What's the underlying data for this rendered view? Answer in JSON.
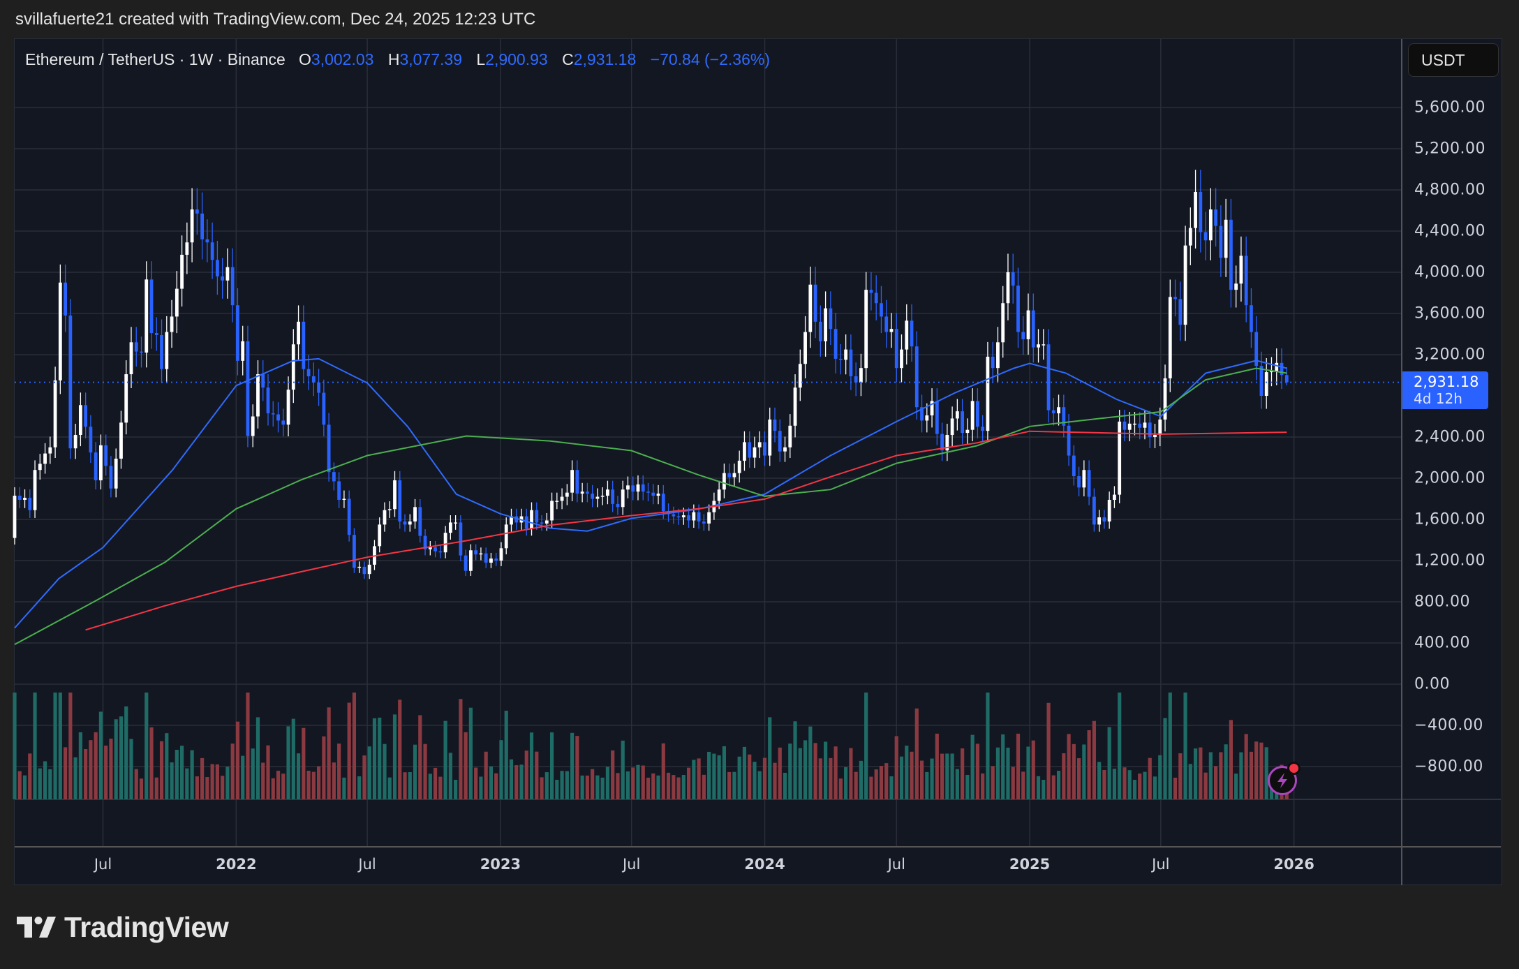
{
  "credit": "svillafuerte21 created with TradingView.com, Dec 24, 2025 12:23 UTC",
  "legend": {
    "symbol": "Ethereum / TetherUS · 1W · Binance",
    "o_label": "O",
    "o": "3,002.03",
    "h_label": "H",
    "h": "3,077.39",
    "l_label": "L",
    "l": "2,900.93",
    "c_label": "C",
    "c": "2,931.18",
    "change": "−70.84 (−2.36%)"
  },
  "currency_button": "USDT",
  "price_tag": {
    "price": "2,931.18",
    "countdown": "4d 12h"
  },
  "logo_text": "TradingView",
  "colors": {
    "up": "#ffffff",
    "down": "#2962ff",
    "vol_up": "#1f6b66",
    "vol_down": "#8a3a40",
    "ma_blue": "#2f6bff",
    "ma_green": "#4caf50",
    "ma_red": "#f23645",
    "grid": "#2a2e39",
    "accent": "#2962ff"
  },
  "chart_data": {
    "type": "candlestick",
    "interval": "1W",
    "start": "2021-03-01",
    "first_open": 1420,
    "weekly_closes": [
      1830,
      1790,
      1810,
      1690,
      2080,
      2140,
      2240,
      2300,
      2950,
      3900,
      3580,
      2290,
      2420,
      2710,
      2500,
      2250,
      1980,
      2320,
      2120,
      1900,
      2190,
      2540,
      3010,
      3320,
      3230,
      3220,
      3930,
      3410,
      3390,
      3060,
      3420,
      3570,
      3840,
      4170,
      4290,
      4610,
      4570,
      4320,
      4290,
      4120,
      3960,
      3920,
      4050,
      3680,
      3140,
      3330,
      2410,
      2600,
      3010,
      2880,
      2630,
      2620,
      2560,
      2520,
      2860,
      3300,
      3520,
      3060,
      2990,
      2930,
      2830,
      2520,
      2060,
      1970,
      1790,
      1800,
      1450,
      1130,
      1140,
      1070,
      1160,
      1340,
      1550,
      1690,
      1700,
      1980,
      1580,
      1550,
      1580,
      1720,
      1440,
      1310,
      1330,
      1290,
      1280,
      1470,
      1570,
      1570,
      1250,
      1100,
      1300,
      1260,
      1270,
      1180,
      1220,
      1200,
      1320,
      1550,
      1630,
      1570,
      1630,
      1510,
      1690,
      1570,
      1560,
      1590,
      1780,
      1780,
      1820,
      1860,
      2080,
      1850,
      1870,
      1850,
      1800,
      1820,
      1830,
      1890,
      1750,
      1720,
      1890,
      1930,
      1870,
      1940,
      1870,
      1860,
      1830,
      1850,
      1680,
      1650,
      1630,
      1620,
      1640,
      1590,
      1670,
      1580,
      1560,
      1670,
      1780,
      1890,
      2050,
      2010,
      2050,
      2170,
      2350,
      2200,
      2300,
      2350,
      2220,
      2570,
      2460,
      2260,
      2300,
      2510,
      2880,
      3110,
      3420,
      3880,
      3520,
      3330,
      3650,
      3450,
      3160,
      3150,
      3250,
      2990,
      2930,
      3070,
      3830,
      3800,
      3700,
      3570,
      3420,
      3450,
      3070,
      3250,
      3530,
      3280,
      2690,
      2560,
      2610,
      2750,
      2430,
      2270,
      2420,
      2580,
      2650,
      2440,
      2470,
      2750,
      2500,
      2460,
      3180,
      3070,
      3320,
      3700,
      4000,
      3870,
      3420,
      3350,
      3630,
      3270,
      3300,
      3300,
      2660,
      2630,
      2690,
      2510,
      2220,
      2020,
      1910,
      2080,
      1820,
      1550,
      1620,
      1580,
      1790,
      1840,
      2550,
      2470,
      2530,
      2530,
      2490,
      2540,
      2400,
      2420,
      2570,
      2970,
      3760,
      3740,
      3490,
      4260,
      4430,
      4780,
      4390,
      4310,
      4610,
      4450,
      4140,
      4510,
      3830,
      3890,
      4160,
      3680,
      3420,
      3090,
      2800,
      3030,
      3040,
      3120,
      3002.03,
      2931.18
    ],
    "last_candle": {
      "open": 3002.03,
      "high": 3077.39,
      "low": 2900.93,
      "close": 2931.18
    },
    "moving_averages": [
      {
        "color": "blue",
        "points": [
          [
            "2021-03-01",
            546
          ],
          [
            "2021-05-01",
            1025
          ],
          [
            "2021-07-01",
            1327
          ],
          [
            "2021-10-05",
            2080
          ],
          [
            "2022-01-01",
            2900
          ],
          [
            "2022-03-20",
            3140
          ],
          [
            "2022-04-25",
            3160
          ],
          [
            "2022-07-01",
            2925
          ],
          [
            "2022-08-26",
            2500
          ],
          [
            "2022-11-01",
            1845
          ],
          [
            "2023-01-01",
            1655
          ],
          [
            "2023-03-10",
            1515
          ],
          [
            "2023-05-01",
            1487
          ],
          [
            "2023-07-01",
            1610
          ],
          [
            "2023-10-01",
            1700
          ],
          [
            "2024-01-01",
            1845
          ],
          [
            "2024-04-01",
            2220
          ],
          [
            "2024-07-01",
            2550
          ],
          [
            "2024-09-20",
            2830
          ],
          [
            "2024-12-10",
            3068
          ],
          [
            "2025-01-01",
            3115
          ],
          [
            "2025-02-20",
            3020
          ],
          [
            "2025-05-01",
            2766
          ],
          [
            "2025-07-01",
            2600
          ],
          [
            "2025-09-01",
            3020
          ],
          [
            "2025-11-10",
            3143
          ],
          [
            "2025-12-22",
            3068
          ]
        ]
      },
      {
        "color": "green",
        "points": [
          [
            "2021-03-01",
            386
          ],
          [
            "2021-06-21",
            810
          ],
          [
            "2021-09-25",
            1186
          ],
          [
            "2022-01-01",
            1703
          ],
          [
            "2022-04-01",
            1985
          ],
          [
            "2022-07-01",
            2220
          ],
          [
            "2022-11-15",
            2410
          ],
          [
            "2023-03-10",
            2362
          ],
          [
            "2023-07-01",
            2268
          ],
          [
            "2023-10-01",
            2033
          ],
          [
            "2024-01-01",
            1825
          ],
          [
            "2024-04-01",
            1890
          ],
          [
            "2024-07-01",
            2145
          ],
          [
            "2024-10-20",
            2315
          ],
          [
            "2025-01-01",
            2503
          ],
          [
            "2025-04-05",
            2578
          ],
          [
            "2025-07-01",
            2645
          ],
          [
            "2025-09-01",
            2955
          ],
          [
            "2025-11-10",
            3068
          ],
          [
            "2025-12-22",
            3020
          ]
        ]
      },
      {
        "color": "red",
        "points": [
          [
            "2021-06-07",
            527
          ],
          [
            "2021-09-25",
            762
          ],
          [
            "2022-01-01",
            950
          ],
          [
            "2022-04-01",
            1092
          ],
          [
            "2022-07-01",
            1233
          ],
          [
            "2022-11-15",
            1393
          ],
          [
            "2023-03-10",
            1543
          ],
          [
            "2023-07-01",
            1637
          ],
          [
            "2023-10-01",
            1703
          ],
          [
            "2024-01-01",
            1797
          ],
          [
            "2024-04-01",
            2014
          ],
          [
            "2024-07-01",
            2220
          ],
          [
            "2024-10-20",
            2343
          ],
          [
            "2025-01-01",
            2456
          ],
          [
            "2025-05-01",
            2437
          ],
          [
            "2025-07-01",
            2428
          ],
          [
            "2025-12-22",
            2447
          ]
        ]
      }
    ],
    "y_ticks": [
      "5,600.00",
      "5,200.00",
      "4,800.00",
      "4,400.00",
      "4,000.00",
      "3,600.00",
      "3,200.00",
      "2,400.00",
      "2,000.00",
      "1,600.00",
      "1,200.00",
      "800.00",
      "400.00",
      "0.00",
      "−400.00",
      "−800.00"
    ],
    "y_tick_values": [
      5600,
      5200,
      4800,
      4400,
      4000,
      3600,
      3200,
      2400,
      2000,
      1600,
      1200,
      800,
      400,
      0,
      -400,
      -800
    ],
    "x_ticks": [
      {
        "label": "Jul",
        "date": "2021-07-01"
      },
      {
        "label": "2022",
        "date": "2022-01-01",
        "year": true
      },
      {
        "label": "Jul",
        "date": "2022-07-01"
      },
      {
        "label": "2023",
        "date": "2023-01-01",
        "year": true
      },
      {
        "label": "Jul",
        "date": "2023-07-01"
      },
      {
        "label": "2024",
        "date": "2024-01-01",
        "year": true
      },
      {
        "label": "Jul",
        "date": "2024-07-01"
      },
      {
        "label": "2025",
        "date": "2025-01-01",
        "year": true
      },
      {
        "label": "Jul",
        "date": "2025-07-01"
      },
      {
        "label": "2026",
        "date": "2026-01-01",
        "year": true
      }
    ],
    "current_price": 2931.18,
    "grid": true
  }
}
